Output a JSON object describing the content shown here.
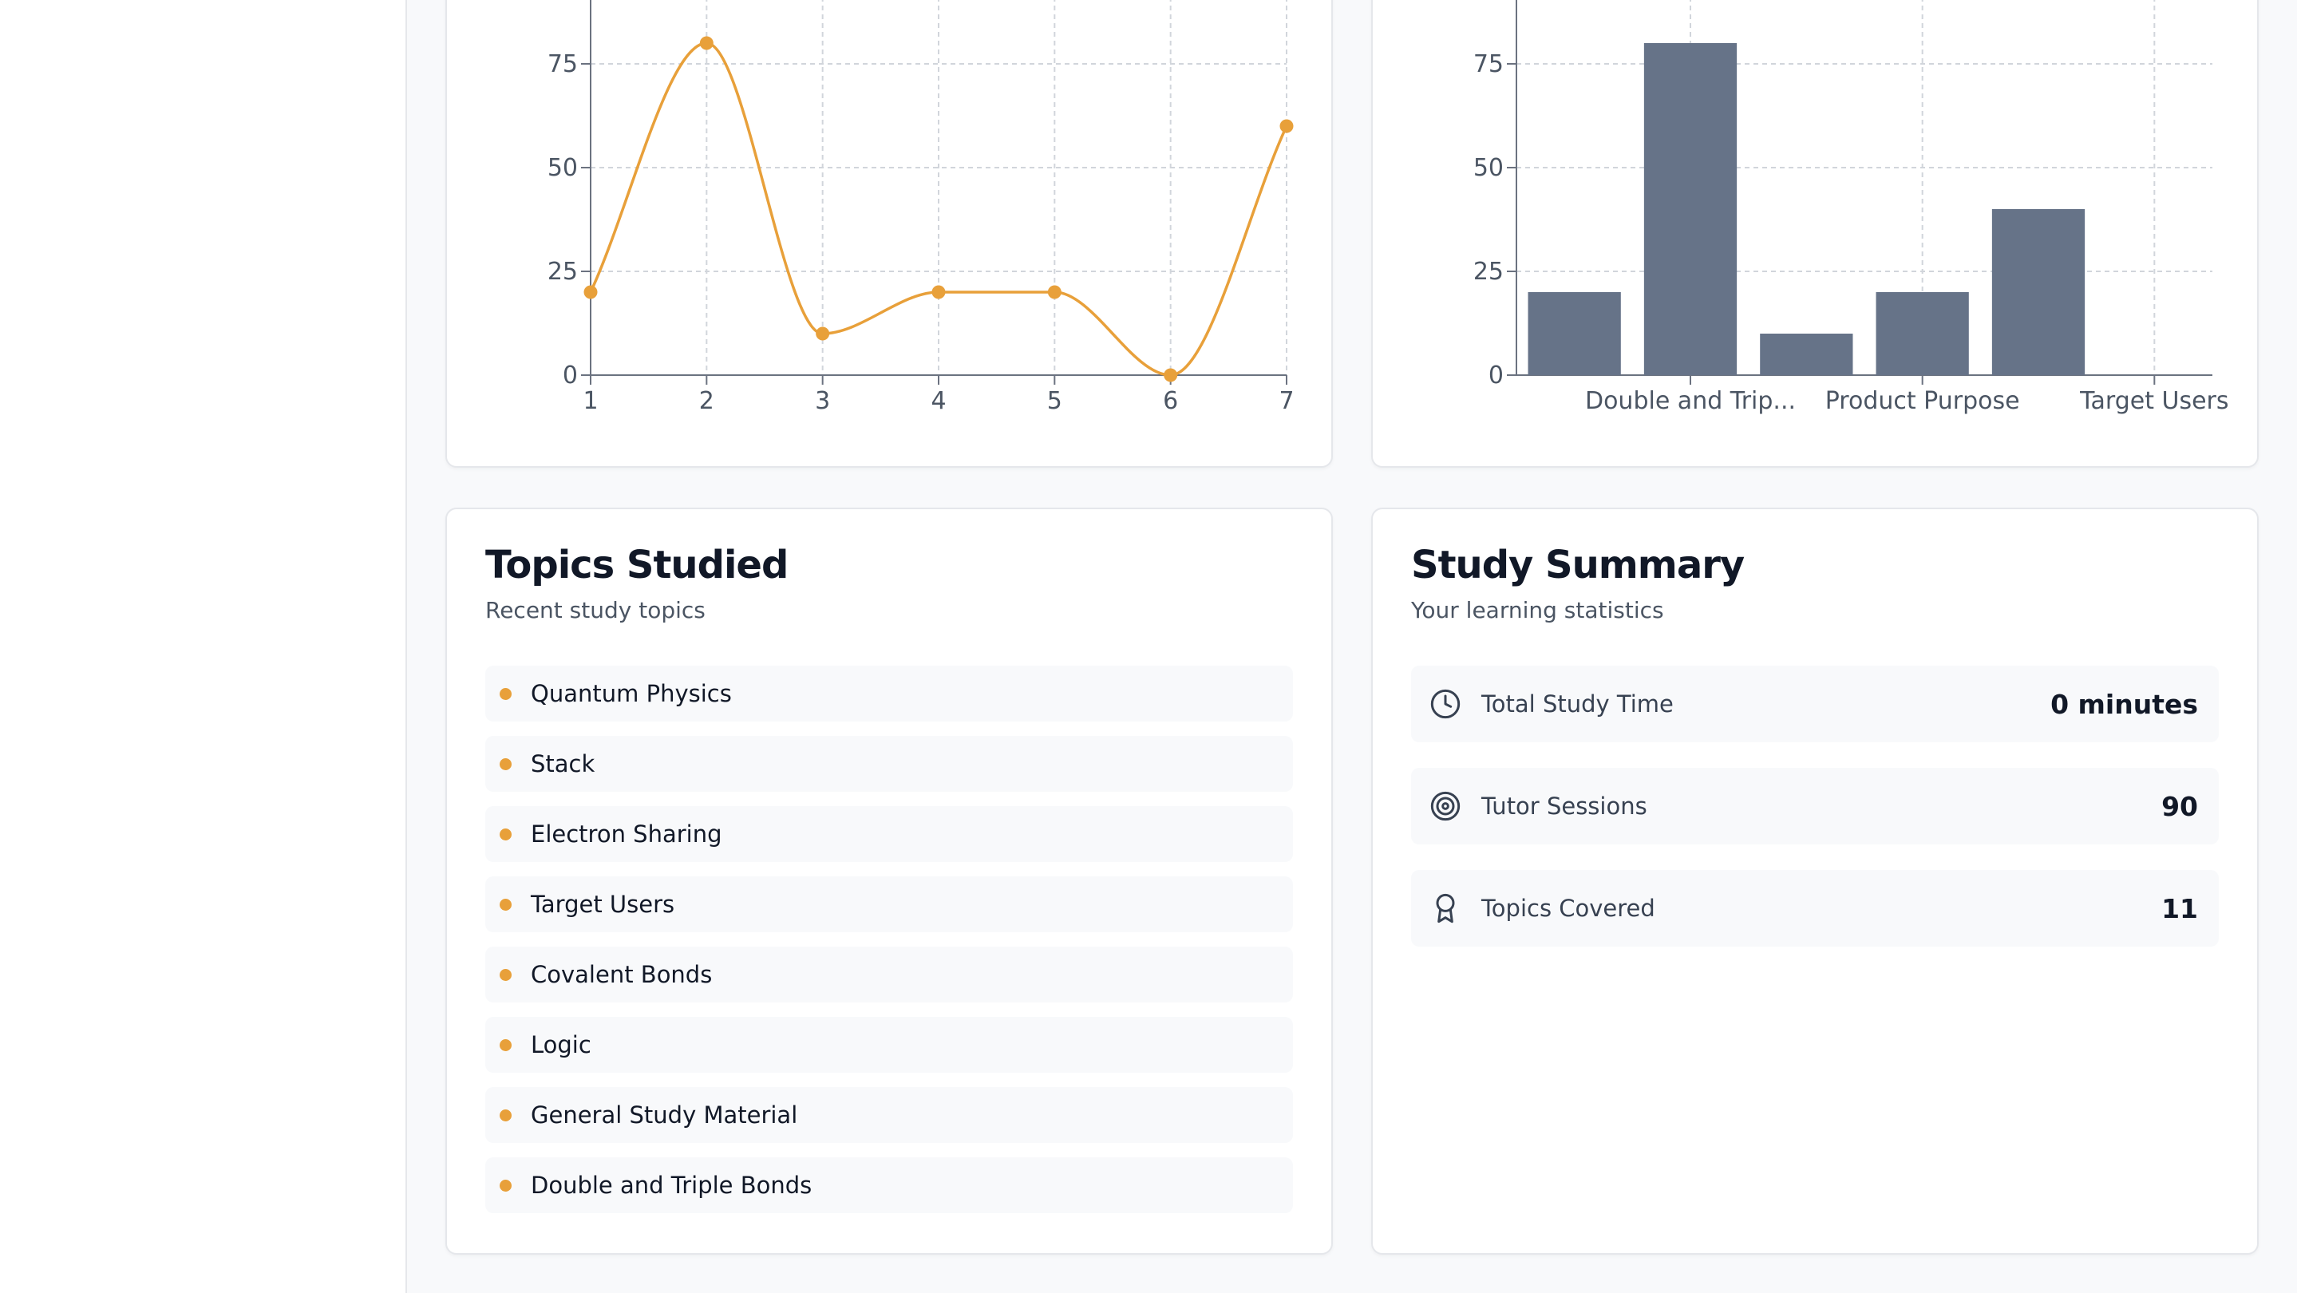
{
  "charts": {
    "chart_data": [
      {
        "type": "line",
        "x": [
          1,
          2,
          3,
          4,
          5,
          6,
          7
        ],
        "values": [
          20,
          80,
          10,
          20,
          20,
          0,
          60
        ],
        "y_ticks": [
          0,
          25,
          50,
          75
        ],
        "x_ticks": [
          "1",
          "2",
          "3",
          "4",
          "5",
          "6",
          "7"
        ],
        "color": "#e8a03a",
        "grid": true
      },
      {
        "type": "bar",
        "values": [
          20,
          80,
          10,
          20,
          40,
          0
        ],
        "x_tick_labels": [
          "Double and Trip...",
          "Product Purpose",
          "Target Users"
        ],
        "y_ticks": [
          0,
          25,
          50,
          75
        ],
        "color": "#667388",
        "grid": true
      }
    ]
  },
  "topics": {
    "title": "Topics Studied",
    "subtitle": "Recent study topics",
    "items": [
      "Quantum Physics",
      "Stack",
      "Electron Sharing",
      "Target Users",
      "Covalent Bonds",
      "Logic",
      "General Study Material",
      "Double and Triple Bonds"
    ],
    "dot_color": "#e8a03a"
  },
  "summary": {
    "title": "Study Summary",
    "subtitle": "Your learning statistics",
    "stats": [
      {
        "icon": "clock-icon",
        "label": "Total Study Time",
        "value": "0 minutes"
      },
      {
        "icon": "target-icon",
        "label": "Tutor Sessions",
        "value": "90"
      },
      {
        "icon": "award-icon",
        "label": "Topics Covered",
        "value": "11"
      }
    ]
  }
}
